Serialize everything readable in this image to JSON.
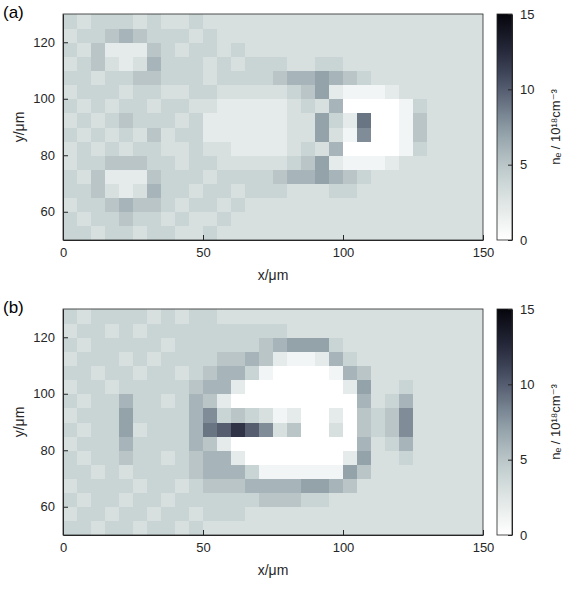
{
  "chart_data": [
    {
      "type": "heatmap",
      "panel": "(a)",
      "x_label": "x/μm",
      "y_label": "y/μm",
      "colorbar_label": "nₑ / 10¹⁸cm⁻³",
      "xlim": [
        0,
        150
      ],
      "ylim": [
        50,
        130
      ],
      "xticks": [
        0,
        50,
        100,
        150
      ],
      "yticks": [
        60,
        80,
        100,
        120
      ],
      "color_range": [
        0,
        15
      ],
      "color_ticks": [
        0,
        5,
        10,
        15
      ],
      "x": [
        2.5,
        7.5,
        12.5,
        17.5,
        22.5,
        27.5,
        32.5,
        37.5,
        42.5,
        47.5,
        52.5,
        57.5,
        62.5,
        67.5,
        72.5,
        77.5,
        82.5,
        87.5,
        92.5,
        97.5,
        102.5,
        107.5,
        112.5,
        117.5,
        122.5,
        127.5,
        132.5,
        137.5,
        142.5,
        147.5
      ],
      "y": [
        52.5,
        57.5,
        62.5,
        67.5,
        72.5,
        77.5,
        82.5,
        87.5,
        92.5,
        97.5,
        102.5,
        107.5,
        112.5,
        117.5,
        122.5,
        127.5
      ],
      "z": [
        [
          4,
          4,
          3,
          4,
          4,
          3,
          4,
          4,
          3,
          3,
          4,
          3,
          3,
          3,
          3,
          3,
          3,
          3,
          3,
          3,
          3,
          3,
          3,
          3,
          3,
          3,
          3,
          3,
          3,
          3
        ],
        [
          4,
          3,
          4,
          4,
          5,
          4,
          4,
          3,
          4,
          3,
          3,
          4,
          3,
          3,
          3,
          3,
          3,
          3,
          3,
          3,
          3,
          3,
          3,
          3,
          3,
          3,
          3,
          3,
          3,
          3
        ],
        [
          3,
          4,
          4,
          5,
          6,
          5,
          5,
          4,
          3,
          4,
          4,
          3,
          4,
          3,
          3,
          3,
          3,
          3,
          3,
          3,
          3,
          3,
          3,
          3,
          3,
          3,
          3,
          3,
          3,
          3
        ],
        [
          4,
          4,
          5,
          3,
          2,
          3,
          6,
          4,
          4,
          3,
          4,
          4,
          3,
          4,
          4,
          4,
          3,
          3,
          3,
          4,
          4,
          3,
          3,
          3,
          3,
          3,
          3,
          3,
          3,
          3
        ],
        [
          4,
          3,
          5,
          2,
          2,
          2,
          5,
          4,
          4,
          4,
          3,
          4,
          4,
          4,
          4,
          5,
          6,
          6,
          7,
          6,
          5,
          4,
          3,
          3,
          3,
          3,
          3,
          3,
          3,
          3
        ],
        [
          3,
          4,
          4,
          5,
          5,
          5,
          4,
          4,
          3,
          4,
          4,
          3,
          3,
          3,
          3,
          3,
          4,
          5,
          7,
          2,
          1,
          1,
          1,
          2,
          3,
          3,
          3,
          3,
          3,
          3
        ],
        [
          3,
          4,
          3,
          4,
          3,
          4,
          4,
          3,
          3,
          4,
          3,
          3,
          2,
          2,
          2,
          2,
          3,
          4,
          3,
          6,
          0,
          0,
          0,
          0,
          1,
          4,
          3,
          3,
          3,
          3
        ],
        [
          4,
          3,
          4,
          3,
          4,
          3,
          5,
          3,
          4,
          4,
          2,
          2,
          2,
          2,
          2,
          2,
          3,
          3,
          7,
          3,
          1,
          8,
          0,
          0,
          1,
          5,
          3,
          3,
          3,
          3
        ],
        [
          3,
          4,
          3,
          4,
          5,
          4,
          4,
          4,
          3,
          4,
          2,
          2,
          2,
          2,
          2,
          2,
          3,
          3,
          7,
          4,
          2,
          9,
          0,
          0,
          1,
          5,
          3,
          3,
          3,
          3
        ],
        [
          4,
          3,
          4,
          3,
          4,
          4,
          3,
          4,
          4,
          3,
          3,
          2,
          2,
          2,
          2,
          2,
          3,
          4,
          3,
          6,
          0,
          0,
          0,
          0,
          1,
          4,
          3,
          3,
          3,
          3
        ],
        [
          3,
          4,
          4,
          4,
          3,
          4,
          4,
          3,
          3,
          4,
          4,
          3,
          3,
          3,
          3,
          3,
          4,
          5,
          7,
          2,
          1,
          1,
          1,
          2,
          3,
          3,
          3,
          3,
          3,
          3
        ],
        [
          4,
          4,
          3,
          4,
          4,
          5,
          5,
          4,
          4,
          4,
          3,
          4,
          4,
          4,
          4,
          5,
          6,
          6,
          7,
          6,
          5,
          4,
          3,
          3,
          3,
          3,
          3,
          3,
          3,
          3
        ],
        [
          3,
          4,
          5,
          3,
          2,
          3,
          6,
          4,
          4,
          4,
          3,
          4,
          3,
          4,
          4,
          4,
          3,
          3,
          4,
          4,
          3,
          3,
          3,
          3,
          3,
          3,
          3,
          3,
          3,
          3
        ],
        [
          4,
          3,
          5,
          2,
          2,
          2,
          5,
          4,
          3,
          4,
          4,
          3,
          4,
          3,
          3,
          3,
          3,
          3,
          3,
          3,
          3,
          3,
          3,
          3,
          3,
          3,
          3,
          3,
          3,
          3
        ],
        [
          3,
          4,
          4,
          5,
          6,
          5,
          4,
          4,
          4,
          3,
          4,
          3,
          3,
          3,
          3,
          3,
          3,
          3,
          3,
          3,
          3,
          3,
          3,
          3,
          3,
          3,
          3,
          3,
          3,
          3
        ],
        [
          4,
          3,
          4,
          4,
          4,
          3,
          4,
          3,
          3,
          4,
          3,
          3,
          3,
          3,
          3,
          3,
          3,
          3,
          3,
          3,
          3,
          3,
          3,
          3,
          3,
          3,
          3,
          3,
          3,
          3
        ]
      ]
    },
    {
      "type": "heatmap",
      "panel": "(b)",
      "x_label": "x/μm",
      "y_label": "y/μm",
      "colorbar_label": "nₑ / 10¹⁸cm⁻³",
      "xlim": [
        0,
        150
      ],
      "ylim": [
        50,
        130
      ],
      "xticks": [
        0,
        50,
        100,
        150
      ],
      "yticks": [
        60,
        80,
        100,
        120
      ],
      "color_range": [
        0,
        15
      ],
      "color_ticks": [
        0,
        5,
        10,
        15
      ],
      "x": [
        2.5,
        7.5,
        12.5,
        17.5,
        22.5,
        27.5,
        32.5,
        37.5,
        42.5,
        47.5,
        52.5,
        57.5,
        62.5,
        67.5,
        72.5,
        77.5,
        82.5,
        87.5,
        92.5,
        97.5,
        102.5,
        107.5,
        112.5,
        117.5,
        122.5,
        127.5,
        132.5,
        137.5,
        142.5,
        147.5
      ],
      "y": [
        52.5,
        57.5,
        62.5,
        67.5,
        72.5,
        77.5,
        82.5,
        87.5,
        92.5,
        97.5,
        102.5,
        107.5,
        112.5,
        117.5,
        122.5,
        127.5
      ],
      "z": [
        [
          4,
          4,
          3,
          4,
          4,
          3,
          4,
          4,
          3,
          4,
          3,
          3,
          3,
          3,
          3,
          3,
          3,
          3,
          3,
          3,
          3,
          3,
          3,
          3,
          3,
          3,
          3,
          3,
          3,
          3
        ],
        [
          3,
          4,
          4,
          3,
          4,
          4,
          3,
          4,
          4,
          3,
          4,
          4,
          4,
          3,
          3,
          3,
          3,
          3,
          3,
          3,
          3,
          3,
          3,
          3,
          3,
          3,
          3,
          3,
          3,
          3
        ],
        [
          4,
          3,
          4,
          4,
          3,
          4,
          4,
          3,
          4,
          4,
          4,
          4,
          4,
          4,
          5,
          5,
          5,
          4,
          4,
          3,
          3,
          3,
          3,
          3,
          3,
          3,
          3,
          3,
          3,
          3
        ],
        [
          3,
          4,
          4,
          4,
          4,
          3,
          4,
          4,
          3,
          4,
          5,
          5,
          5,
          6,
          6,
          6,
          6,
          7,
          7,
          6,
          5,
          3,
          3,
          3,
          3,
          3,
          3,
          3,
          3,
          3
        ],
        [
          4,
          4,
          3,
          4,
          3,
          4,
          4,
          4,
          4,
          5,
          6,
          6,
          6,
          4,
          1,
          1,
          1,
          1,
          1,
          1,
          7,
          5,
          3,
          3,
          3,
          3,
          3,
          3,
          3,
          3
        ],
        [
          4,
          3,
          4,
          4,
          5,
          4,
          4,
          3,
          4,
          5,
          6,
          6,
          2,
          0,
          0,
          0,
          0,
          0,
          0,
          0,
          2,
          7,
          3,
          3,
          4,
          3,
          3,
          3,
          3,
          3
        ],
        [
          3,
          4,
          4,
          4,
          6,
          4,
          4,
          4,
          4,
          6,
          5,
          2,
          0,
          0,
          0,
          0,
          0,
          0,
          0,
          0,
          0,
          6,
          3,
          4,
          6,
          3,
          3,
          3,
          3,
          3
        ],
        [
          4,
          3,
          4,
          4,
          7,
          3,
          4,
          4,
          4,
          6,
          9,
          10,
          12,
          10,
          8,
          3,
          5,
          0,
          0,
          3,
          0,
          5,
          4,
          5,
          8,
          3,
          3,
          3,
          3,
          3
        ],
        [
          3,
          4,
          4,
          4,
          7,
          4,
          4,
          4,
          4,
          6,
          8,
          4,
          5,
          4,
          3,
          1,
          2,
          0,
          0,
          2,
          0,
          5,
          4,
          5,
          8,
          3,
          3,
          3,
          3,
          3
        ],
        [
          4,
          3,
          4,
          4,
          6,
          4,
          4,
          3,
          4,
          6,
          5,
          2,
          0,
          0,
          0,
          0,
          0,
          0,
          0,
          0,
          0,
          6,
          3,
          4,
          6,
          3,
          3,
          3,
          3,
          3
        ],
        [
          3,
          4,
          4,
          3,
          4,
          4,
          4,
          4,
          4,
          5,
          6,
          6,
          2,
          0,
          0,
          0,
          0,
          0,
          0,
          0,
          2,
          7,
          3,
          3,
          4,
          3,
          3,
          3,
          3,
          3
        ],
        [
          4,
          4,
          3,
          4,
          4,
          3,
          4,
          4,
          3,
          4,
          5,
          6,
          6,
          4,
          1,
          0,
          0,
          0,
          0,
          1,
          6,
          5,
          3,
          3,
          3,
          3,
          3,
          3,
          3,
          3
        ],
        [
          3,
          4,
          4,
          4,
          3,
          4,
          3,
          4,
          4,
          4,
          4,
          5,
          5,
          6,
          5,
          2,
          1,
          1,
          2,
          6,
          4,
          3,
          3,
          3,
          3,
          3,
          3,
          3,
          3,
          3
        ],
        [
          4,
          3,
          4,
          4,
          4,
          4,
          4,
          3,
          4,
          4,
          4,
          4,
          4,
          4,
          5,
          6,
          7,
          7,
          7,
          4,
          3,
          3,
          3,
          3,
          3,
          3,
          3,
          3,
          3,
          3
        ],
        [
          3,
          4,
          4,
          3,
          4,
          3,
          4,
          4,
          4,
          4,
          4,
          4,
          4,
          4,
          4,
          4,
          3,
          3,
          3,
          3,
          3,
          3,
          3,
          3,
          3,
          3,
          3,
          3,
          3,
          3
        ],
        [
          4,
          3,
          4,
          4,
          4,
          4,
          3,
          4,
          3,
          4,
          4,
          3,
          3,
          3,
          3,
          3,
          3,
          3,
          3,
          3,
          3,
          3,
          3,
          3,
          3,
          3,
          3,
          3,
          3,
          3
        ]
      ]
    }
  ]
}
